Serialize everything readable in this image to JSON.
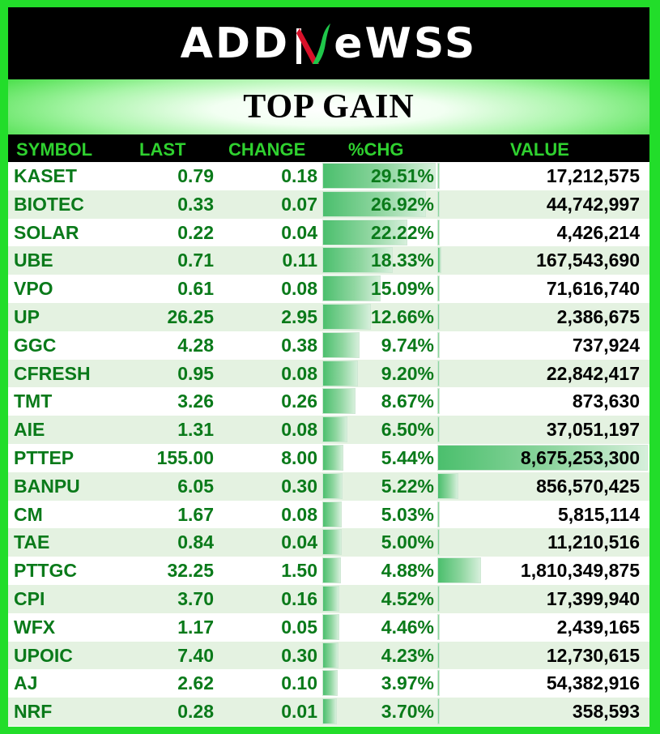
{
  "brand": {
    "left": "ADD",
    "right": "eWSS"
  },
  "title": "TOP GAIN",
  "headers": [
    "SYMBOL",
    "LAST",
    "CHANGE",
    "%CHG",
    "VALUE"
  ],
  "colors": {
    "accent_green": "#22dd2a",
    "text_green": "#0a7a1a",
    "bar_green": "#4bbf6d"
  },
  "rows": [
    {
      "symbol": "KASET",
      "last": "0.79",
      "change": "0.18",
      "pct": "29.51%",
      "pct_value": 29.51,
      "value": "17,212,575",
      "value_num": 17212575
    },
    {
      "symbol": "BIOTEC",
      "last": "0.33",
      "change": "0.07",
      "pct": "26.92%",
      "pct_value": 26.92,
      "value": "44,742,997",
      "value_num": 44742997
    },
    {
      "symbol": "SOLAR",
      "last": "0.22",
      "change": "0.04",
      "pct": "22.22%",
      "pct_value": 22.22,
      "value": "4,426,214",
      "value_num": 4426214
    },
    {
      "symbol": "UBE",
      "last": "0.71",
      "change": "0.11",
      "pct": "18.33%",
      "pct_value": 18.33,
      "value": "167,543,690",
      "value_num": 167543690
    },
    {
      "symbol": "VPO",
      "last": "0.61",
      "change": "0.08",
      "pct": "15.09%",
      "pct_value": 15.09,
      "value": "71,616,740",
      "value_num": 71616740
    },
    {
      "symbol": "UP",
      "last": "26.25",
      "change": "2.95",
      "pct": "12.66%",
      "pct_value": 12.66,
      "value": "2,386,675",
      "value_num": 2386675
    },
    {
      "symbol": "GGC",
      "last": "4.28",
      "change": "0.38",
      "pct": "9.74%",
      "pct_value": 9.74,
      "value": "737,924",
      "value_num": 737924
    },
    {
      "symbol": "CFRESH",
      "last": "0.95",
      "change": "0.08",
      "pct": "9.20%",
      "pct_value": 9.2,
      "value": "22,842,417",
      "value_num": 22842417
    },
    {
      "symbol": "TMT",
      "last": "3.26",
      "change": "0.26",
      "pct": "8.67%",
      "pct_value": 8.67,
      "value": "873,630",
      "value_num": 873630
    },
    {
      "symbol": "AIE",
      "last": "1.31",
      "change": "0.08",
      "pct": "6.50%",
      "pct_value": 6.5,
      "value": "37,051,197",
      "value_num": 37051197
    },
    {
      "symbol": "PTTEP",
      "last": "155.00",
      "change": "8.00",
      "pct": "5.44%",
      "pct_value": 5.44,
      "value": "8,675,253,300",
      "value_num": 8675253300
    },
    {
      "symbol": "BANPU",
      "last": "6.05",
      "change": "0.30",
      "pct": "5.22%",
      "pct_value": 5.22,
      "value": "856,570,425",
      "value_num": 856570425
    },
    {
      "symbol": "CM",
      "last": "1.67",
      "change": "0.08",
      "pct": "5.03%",
      "pct_value": 5.03,
      "value": "5,815,114",
      "value_num": 5815114
    },
    {
      "symbol": "TAE",
      "last": "0.84",
      "change": "0.04",
      "pct": "5.00%",
      "pct_value": 5.0,
      "value": "11,210,516",
      "value_num": 11210516
    },
    {
      "symbol": "PTTGC",
      "last": "32.25",
      "change": "1.50",
      "pct": "4.88%",
      "pct_value": 4.88,
      "value": "1,810,349,875",
      "value_num": 1810349875
    },
    {
      "symbol": "CPI",
      "last": "3.70",
      "change": "0.16",
      "pct": "4.52%",
      "pct_value": 4.52,
      "value": "17,399,940",
      "value_num": 17399940
    },
    {
      "symbol": "WFX",
      "last": "1.17",
      "change": "0.05",
      "pct": "4.46%",
      "pct_value": 4.46,
      "value": "2,439,165",
      "value_num": 2439165
    },
    {
      "symbol": "UPOIC",
      "last": "7.40",
      "change": "0.30",
      "pct": "4.23%",
      "pct_value": 4.23,
      "value": "12,730,615",
      "value_num": 12730615
    },
    {
      "symbol": "AJ",
      "last": "2.62",
      "change": "0.10",
      "pct": "3.97%",
      "pct_value": 3.97,
      "value": "54,382,916",
      "value_num": 54382916
    },
    {
      "symbol": "NRF",
      "last": "0.28",
      "change": "0.01",
      "pct": "3.70%",
      "pct_value": 3.7,
      "value": "358,593",
      "value_num": 358593
    }
  ]
}
